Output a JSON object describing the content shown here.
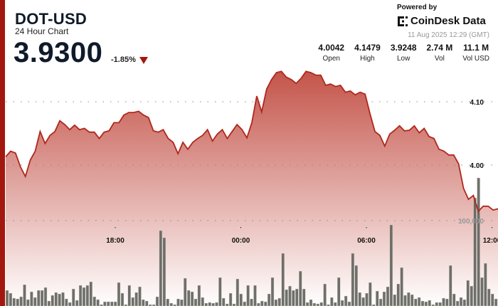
{
  "header": {
    "symbol": "DOT-USD",
    "subtitle": "24 Hour Chart",
    "price": "3.9300",
    "change": "-1.85%",
    "change_direction": "down"
  },
  "branding": {
    "powered_by": "Powered by",
    "brand": "CoinDesk Data",
    "timestamp": "11 Aug 2025 12:29 (GMT)"
  },
  "stats": [
    {
      "value": "4.0042",
      "label": "Open"
    },
    {
      "value": "4.1479",
      "label": "High"
    },
    {
      "value": "3.9248",
      "label": "Low"
    },
    {
      "value": "2.74 M",
      "label": "Vol"
    },
    {
      "value": "11.1 M",
      "label": "Vol USD"
    }
  ],
  "colors": {
    "accent": "#a3180e",
    "line": "#b0271c",
    "area_top": "#c4544a",
    "volume_bar": "#5f605a"
  },
  "chart_data": {
    "type": "line",
    "price_ticks": [
      {
        "value": 4.1,
        "label": "4.10"
      },
      {
        "value": 4.0,
        "label": "4.00"
      }
    ],
    "volume_tick": {
      "value": 100000,
      "label": "100,000"
    },
    "x_tick_labels": [
      "18:00",
      "00:00",
      "06:00",
      "12:00"
    ],
    "grid": true,
    "price": [
      4.013,
      4.022,
      4.019,
      3.997,
      3.982,
      4.008,
      4.022,
      4.053,
      4.034,
      4.047,
      4.053,
      4.07,
      4.064,
      4.056,
      4.063,
      4.056,
      4.058,
      4.052,
      4.052,
      4.042,
      4.052,
      4.054,
      4.067,
      4.067,
      4.079,
      4.083,
      4.083,
      4.085,
      4.079,
      4.075,
      4.054,
      4.052,
      4.056,
      4.042,
      4.036,
      4.018,
      4.036,
      4.025,
      4.036,
      4.042,
      4.047,
      4.056,
      4.038,
      4.049,
      4.056,
      4.042,
      4.053,
      4.064,
      4.056,
      4.043,
      4.067,
      4.109,
      4.084,
      4.12,
      4.135,
      4.146,
      4.148,
      4.139,
      4.135,
      4.129,
      4.137,
      4.148,
      4.146,
      4.142,
      4.142,
      4.126,
      4.128,
      4.124,
      4.126,
      4.115,
      4.117,
      4.111,
      4.115,
      4.112,
      4.081,
      4.053,
      4.047,
      4.03,
      4.049,
      4.055,
      4.062,
      4.054,
      4.055,
      4.062,
      4.051,
      4.058,
      4.045,
      4.042,
      4.025,
      4.022,
      4.016,
      4.016,
      4.002,
      3.963,
      3.946,
      3.952,
      3.927,
      3.935,
      3.935,
      3.929,
      3.931
    ],
    "volume": [
      18300,
      15000,
      9200,
      8300,
      10800,
      25000,
      7500,
      16700,
      10000,
      18300,
      18300,
      21700,
      5800,
      12500,
      15800,
      14200,
      15800,
      8300,
      4200,
      20000,
      6700,
      24200,
      21700,
      24200,
      28300,
      10800,
      7500,
      1700,
      5000,
      5000,
      5000,
      5000,
      27500,
      15000,
      1700,
      24200,
      10000,
      15800,
      22500,
      7500,
      5800,
      1700,
      1700,
      10800,
      88300,
      80000,
      8300,
      3300,
      1700,
      8300,
      7500,
      32500,
      18300,
      16700,
      8300,
      24200,
      10000,
      3300,
      4200,
      3300,
      4200,
      33300,
      9200,
      2500,
      15000,
      2500,
      31700,
      14200,
      5000,
      24200,
      8300,
      24200,
      3300,
      5800,
      5000,
      14200,
      33300,
      7500,
      9200,
      61700,
      19200,
      23300,
      18300,
      20000,
      40800,
      20000,
      4200,
      7500,
      3300,
      2500,
      4200,
      25800,
      1700,
      10000,
      4200,
      33300,
      6700,
      11700,
      5000,
      61700,
      47500,
      15800,
      10000,
      15000,
      27500,
      1700,
      17500,
      8300,
      16700,
      22500,
      95000,
      13300,
      25800,
      45000,
      12500,
      15800,
      13300,
      8300,
      10000,
      5800,
      5000,
      6700,
      1700,
      4200,
      4200,
      9200,
      8300,
      47500,
      14200,
      5800,
      10000,
      7500,
      30000,
      23300,
      126700,
      150000,
      33300,
      50000,
      20000,
      14200,
      8300
    ]
  }
}
